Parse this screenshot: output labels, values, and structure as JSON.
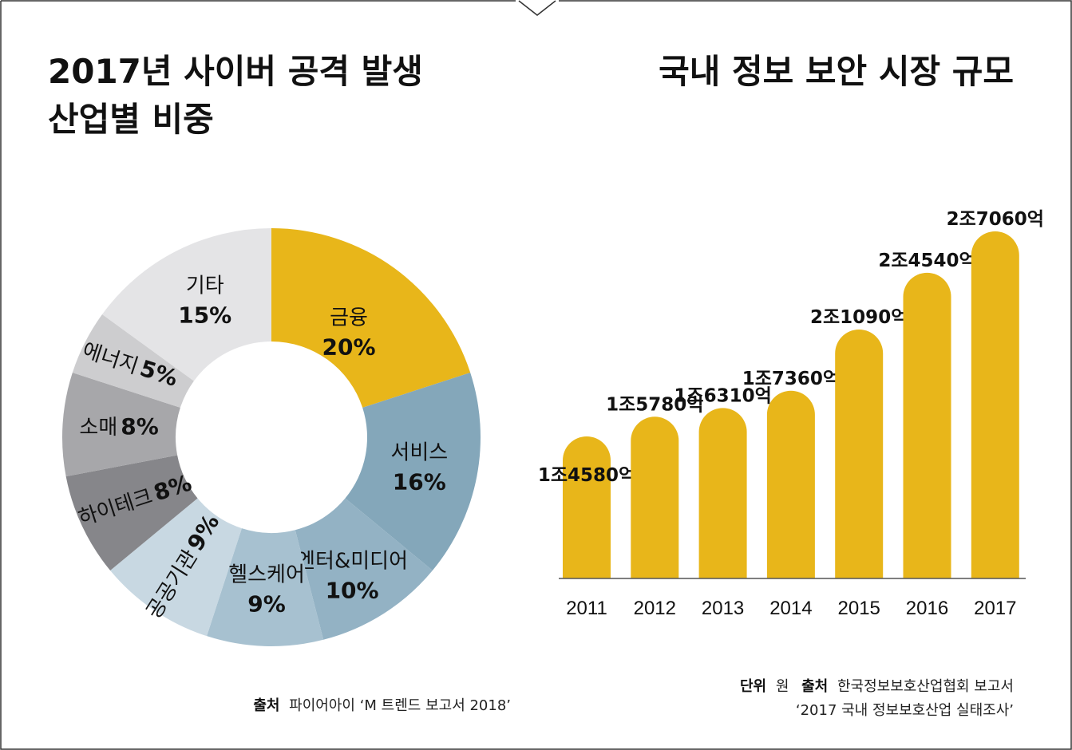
{
  "left": {
    "title_line1": "2017년 사이버 공격 발생",
    "title_line2": "산업별 비중",
    "source_label": "출처",
    "source_text": "파이어아이 ‘M 트렌드 보고서 2018’"
  },
  "right": {
    "title": "국내 정보 보안 시장 규모",
    "unit_label": "단위",
    "unit_value": "원",
    "source_label": "출처",
    "source_line1": "한국정보보호산업협회 보고서",
    "source_line2": "‘2017 국내 정보보호산업 실태조사’"
  },
  "chart_data": [
    {
      "type": "pie",
      "title": "2017년 사이버 공격 발생 산업별 비중",
      "donut": true,
      "slices": [
        {
          "label": "금융",
          "value": 20,
          "display": "20%",
          "color": "#E8B61A"
        },
        {
          "label": "서비스",
          "value": 16,
          "display": "16%",
          "color": "#84A7BA"
        },
        {
          "label": "엔터&미디어",
          "value": 10,
          "display": "10%",
          "color": "#93B2C4"
        },
        {
          "label": "헬스케어",
          "value": 9,
          "display": "9%",
          "color": "#A7C1D0"
        },
        {
          "label": "공공기관",
          "value": 9,
          "display": "9%",
          "color": "#C8D8E2"
        },
        {
          "label": "하이테크",
          "value": 8,
          "display": "8%",
          "color": "#86868A"
        },
        {
          "label": "소매",
          "value": 8,
          "display": "8%",
          "color": "#A7A7AA"
        },
        {
          "label": "에너지",
          "value": 5,
          "display": "5%",
          "color": "#CDCDCF"
        },
        {
          "label": "기타",
          "value": 15,
          "display": "15%",
          "color": "#E4E4E6"
        }
      ]
    },
    {
      "type": "bar",
      "title": "국내 정보 보안 시장 규모",
      "categories": [
        "2011",
        "2012",
        "2013",
        "2014",
        "2015",
        "2016",
        "2017"
      ],
      "values": [
        14580,
        15780,
        16310,
        17360,
        21090,
        24540,
        27060
      ],
      "value_unit": "억 원",
      "labels": [
        "1조4580억",
        "1조5780억",
        "1조6310억",
        "1조7360억",
        "2조1090억",
        "2조4540억",
        "2조7060억"
      ],
      "color": "#E8B61A"
    }
  ]
}
